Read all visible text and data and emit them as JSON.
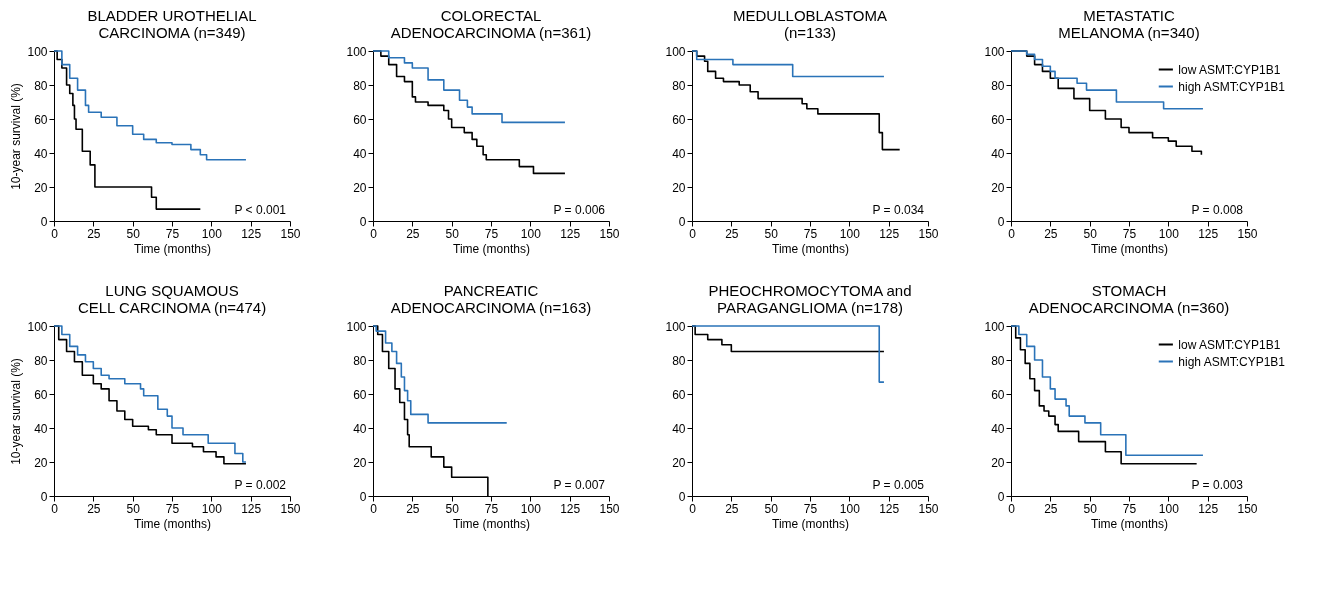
{
  "chart_data": [
    {
      "type": "step",
      "title": "BLADDER UROTHELIAL\nCARCINOMA (n=349)",
      "xlabel": "Time (months)",
      "ylabel": "10-year survival (%)",
      "xlim": [
        0,
        150
      ],
      "xticks": [
        0,
        25,
        50,
        75,
        100,
        125,
        150
      ],
      "ylim": [
        0,
        100
      ],
      "yticks": [
        0,
        20,
        40,
        60,
        80,
        100
      ],
      "annotations": [
        "P < 0.001"
      ],
      "series": [
        {
          "color": "#000000",
          "x": [
            0,
            2,
            5,
            8,
            10,
            12,
            13,
            14,
            18,
            23,
            26,
            62,
            65,
            93
          ],
          "values": [
            100,
            95,
            90,
            80,
            75,
            68,
            60,
            54,
            41,
            33,
            20,
            14,
            7,
            7
          ]
        },
        {
          "color": "#2a73b8",
          "x": [
            0,
            5,
            10,
            15,
            20,
            22,
            30,
            40,
            50,
            57,
            65,
            75,
            87,
            93,
            97,
            122
          ],
          "values": [
            100,
            92,
            84,
            77,
            68,
            64,
            61,
            56,
            51,
            48,
            46,
            45,
            42,
            39,
            36,
            36
          ]
        }
      ]
    },
    {
      "type": "step",
      "title": "COLORECTAL\nADENOCARCINOMA (n=361)",
      "xlabel": "Time (months)",
      "xlim": [
        0,
        150
      ],
      "xticks": [
        0,
        25,
        50,
        75,
        100,
        125,
        150
      ],
      "ylim": [
        0,
        100
      ],
      "yticks": [
        0,
        20,
        40,
        60,
        80,
        100
      ],
      "annotations": [
        "P = 0.006"
      ],
      "series": [
        {
          "color": "#000000",
          "x": [
            0,
            5,
            10,
            15,
            20,
            25,
            27,
            35,
            45,
            48,
            50,
            58,
            63,
            66,
            70,
            72,
            93,
            102,
            122
          ],
          "values": [
            100,
            97,
            92,
            85,
            82,
            73,
            70,
            68,
            65,
            60,
            55,
            52,
            48,
            44,
            39,
            36,
            32,
            28,
            28
          ]
        },
        {
          "color": "#2a73b8",
          "x": [
            0,
            10,
            20,
            25,
            35,
            45,
            55,
            60,
            63,
            82,
            122
          ],
          "values": [
            100,
            96,
            93,
            90,
            83,
            77,
            71,
            67,
            63,
            58,
            58
          ]
        }
      ]
    },
    {
      "type": "step",
      "title": "MEDULLOBLASTOMA\n(n=133)",
      "xlabel": "Time (months)",
      "xlim": [
        0,
        150
      ],
      "xticks": [
        0,
        25,
        50,
        75,
        100,
        125,
        150
      ],
      "ylim": [
        0,
        100
      ],
      "yticks": [
        0,
        20,
        40,
        60,
        80,
        100
      ],
      "annotations": [
        "P = 0.034"
      ],
      "series": [
        {
          "color": "#000000",
          "x": [
            0,
            3,
            8,
            10,
            15,
            20,
            30,
            37,
            42,
            70,
            73,
            80,
            118,
            119,
            121,
            132
          ],
          "values": [
            100,
            97,
            94,
            88,
            84,
            82,
            80,
            76,
            72,
            69,
            66,
            63,
            63,
            52,
            42,
            42
          ]
        },
        {
          "color": "#2a73b8",
          "x": [
            0,
            3,
            26,
            64,
            122
          ],
          "values": [
            100,
            95,
            92,
            85,
            85
          ]
        }
      ]
    },
    {
      "type": "step",
      "title": "METASTATIC\nMELANOMA (n=340)",
      "xlabel": "Time (months)",
      "xlim": [
        0,
        150
      ],
      "xticks": [
        0,
        25,
        50,
        75,
        100,
        125,
        150
      ],
      "ylim": [
        0,
        100
      ],
      "yticks": [
        0,
        20,
        40,
        60,
        80,
        100
      ],
      "annotations": [
        "P = 0.008"
      ],
      "legend": "top right",
      "series": [
        {
          "name": "low ASMT:CYP1B1",
          "color": "#000000",
          "x": [
            0,
            10,
            15,
            20,
            25,
            30,
            40,
            50,
            60,
            70,
            75,
            90,
            100,
            105,
            115,
            121
          ],
          "values": [
            100,
            97,
            92,
            88,
            84,
            78,
            72,
            65,
            60,
            55,
            52,
            49,
            47,
            44,
            41,
            39
          ]
        },
        {
          "name": "high ASMT:CYP1B1",
          "color": "#2a73b8",
          "x": [
            0,
            10,
            15,
            20,
            25,
            28,
            42,
            48,
            67,
            97,
            122
          ],
          "values": [
            100,
            98,
            95,
            91,
            88,
            84,
            81,
            77,
            70,
            66,
            66
          ]
        }
      ]
    },
    {
      "type": "step",
      "title": "LUNG SQUAMOUS\nCELL CARCINOMA (n=474)",
      "xlabel": "Time (months)",
      "ylabel": "10-year survival (%)",
      "xlim": [
        0,
        150
      ],
      "xticks": [
        0,
        25,
        50,
        75,
        100,
        125,
        150
      ],
      "ylim": [
        0,
        100
      ],
      "yticks": [
        0,
        20,
        40,
        60,
        80,
        100
      ],
      "annotations": [
        "P = 0.002"
      ],
      "series": [
        {
          "color": "#000000",
          "x": [
            0,
            3,
            8,
            13,
            18,
            25,
            30,
            35,
            40,
            45,
            50,
            60,
            65,
            75,
            88,
            95,
            103,
            108,
            122
          ],
          "values": [
            100,
            92,
            85,
            79,
            71,
            66,
            63,
            56,
            50,
            45,
            41,
            39,
            36,
            31,
            29,
            26,
            23,
            19,
            19
          ]
        },
        {
          "color": "#2a73b8",
          "x": [
            0,
            5,
            10,
            15,
            20,
            25,
            30,
            35,
            45,
            55,
            57,
            66,
            72,
            75,
            82,
            98,
            115,
            120,
            122
          ],
          "values": [
            100,
            95,
            88,
            83,
            79,
            75,
            71,
            69,
            66,
            63,
            59,
            51,
            47,
            40,
            36,
            31,
            25,
            20,
            20
          ]
        }
      ]
    },
    {
      "type": "step",
      "title": "PANCREATIC\nADENOCARCINOMA (n=163)",
      "xlabel": "Time (months)",
      "xlim": [
        0,
        150
      ],
      "xticks": [
        0,
        25,
        50,
        75,
        100,
        125,
        150
      ],
      "ylim": [
        0,
        100
      ],
      "yticks": [
        0,
        20,
        40,
        60,
        80,
        100
      ],
      "annotations": [
        "P = 0.007"
      ],
      "series": [
        {
          "color": "#000000",
          "x": [
            0,
            3,
            6,
            10,
            14,
            17,
            20,
            22,
            23,
            37,
            45,
            50,
            73
          ],
          "values": [
            100,
            95,
            85,
            75,
            63,
            55,
            45,
            36,
            29,
            23,
            17,
            11,
            0
          ]
        },
        {
          "color": "#2a73b8",
          "x": [
            0,
            2,
            8,
            12,
            15,
            18,
            20,
            22,
            24,
            35,
            85
          ],
          "values": [
            100,
            97,
            90,
            85,
            78,
            70,
            62,
            56,
            48,
            43,
            43
          ]
        }
      ]
    },
    {
      "type": "step",
      "title": "PHEOCHROMOCYTOMA and\nPARAGANGLIOMA (n=178)",
      "xlabel": "Time (months)",
      "xlim": [
        0,
        150
      ],
      "xticks": [
        0,
        25,
        50,
        75,
        100,
        125,
        150
      ],
      "ylim": [
        0,
        100
      ],
      "yticks": [
        0,
        20,
        40,
        60,
        80,
        100
      ],
      "annotations": [
        "P = 0.005"
      ],
      "series": [
        {
          "color": "#000000",
          "x": [
            0,
            2,
            10,
            19,
            25,
            122
          ],
          "values": [
            100,
            95,
            92,
            89,
            85,
            85
          ]
        },
        {
          "color": "#2a73b8",
          "x": [
            0,
            118,
            119,
            122
          ],
          "values": [
            100,
            100,
            67,
            67
          ]
        }
      ]
    },
    {
      "type": "step",
      "title": "STOMACH\nADENOCARCINOMA (n=360)",
      "xlabel": "Time (months)",
      "xlim": [
        0,
        150
      ],
      "xticks": [
        0,
        25,
        50,
        75,
        100,
        125,
        150
      ],
      "ylim": [
        0,
        100
      ],
      "yticks": [
        0,
        20,
        40,
        60,
        80,
        100
      ],
      "annotations": [
        "P = 0.003"
      ],
      "legend": "top right",
      "series": [
        {
          "name": "low ASMT:CYP1B1",
          "color": "#000000",
          "x": [
            0,
            3,
            6,
            9,
            12,
            15,
            18,
            21,
            24,
            28,
            30,
            43,
            60,
            70,
            118
          ],
          "values": [
            100,
            93,
            86,
            78,
            69,
            62,
            53,
            50,
            47,
            42,
            38,
            32,
            26,
            19,
            19
          ]
        },
        {
          "name": "high ASMT:CYP1B1",
          "color": "#2a73b8",
          "x": [
            0,
            5,
            10,
            15,
            20,
            25,
            28,
            35,
            37,
            47,
            57,
            73,
            122
          ],
          "values": [
            100,
            95,
            88,
            80,
            70,
            63,
            57,
            53,
            47,
            43,
            36,
            24,
            24
          ]
        }
      ]
    }
  ]
}
